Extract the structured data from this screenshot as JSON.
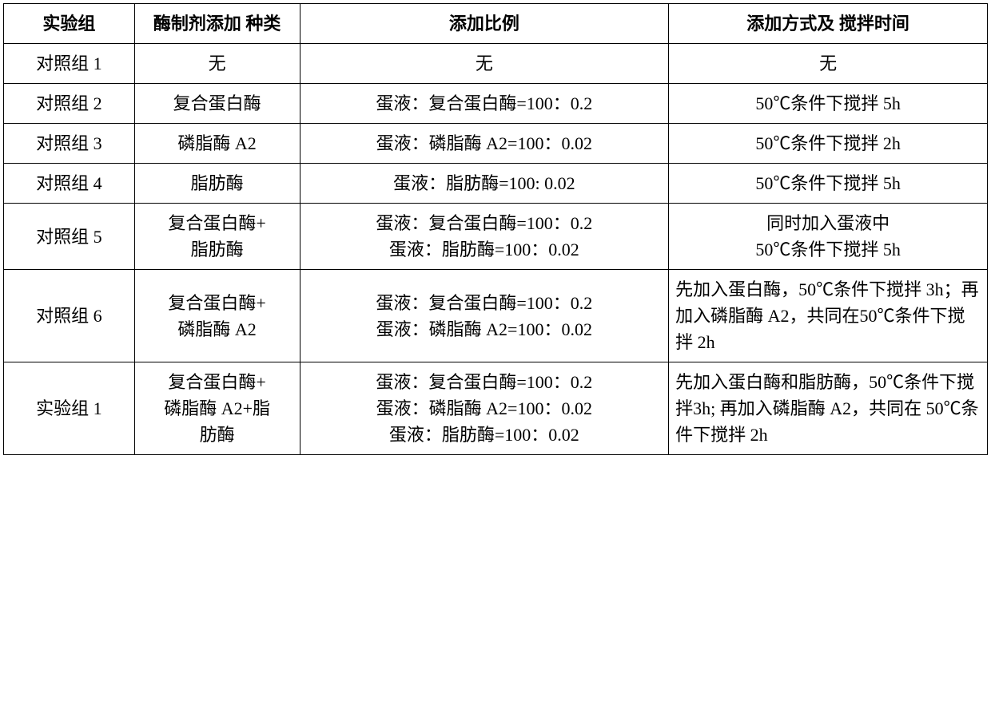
{
  "table": {
    "border_color": "#000000",
    "background_color": "#ffffff",
    "text_color": "#000000",
    "font_size_pt": 16,
    "columns": [
      {
        "label": "实验组",
        "width_pct": 13.3,
        "align": "center"
      },
      {
        "label_line1": "酶制剂添加",
        "label_line2": "种类",
        "width_pct": 16.8,
        "align": "center"
      },
      {
        "label": "添加比例",
        "width_pct": 37.5,
        "align": "center"
      },
      {
        "label_line1": "添加方式及",
        "label_line2": "搅拌时间",
        "width_pct": 32.4,
        "align": "center"
      }
    ],
    "rows": [
      {
        "group": "对照组 1",
        "enzyme": "无",
        "ratio": "无",
        "method": "无",
        "method_align": "center"
      },
      {
        "group": "对照组 2",
        "enzyme": "复合蛋白酶",
        "ratio": "蛋液：复合蛋白酶=100：0.2",
        "method": "50℃条件下搅拌 5h",
        "method_align": "center"
      },
      {
        "group": "对照组 3",
        "enzyme": "磷脂酶 A2",
        "ratio": "蛋液：磷脂酶 A2=100：0.02",
        "method": "50℃条件下搅拌 2h",
        "method_align": "center"
      },
      {
        "group": "对照组 4",
        "enzyme": "脂肪酶",
        "ratio": "蛋液：脂肪酶=100: 0.02",
        "method": "50℃条件下搅拌 5h",
        "method_align": "center"
      },
      {
        "group": "对照组 5",
        "enzyme_line1": "复合蛋白酶+",
        "enzyme_line2": "脂肪酶",
        "ratio_line1": "蛋液：复合蛋白酶=100：0.2",
        "ratio_line2": "蛋液：脂肪酶=100：0.02",
        "method_line1": "同时加入蛋液中",
        "method_line2": "50℃条件下搅拌 5h",
        "method_align": "center"
      },
      {
        "group": "对照组 6",
        "enzyme_line1": "复合蛋白酶+",
        "enzyme_line2": "磷脂酶 A2",
        "ratio_line1": "蛋液：复合蛋白酶=100：0.2",
        "ratio_line2": "蛋液：磷脂酶 A2=100：0.02",
        "method_text": "先加入蛋白酶，50℃条件下搅拌 3h；再加入磷脂酶 A2，共同在50℃条件下搅拌 2h",
        "method_align": "left"
      },
      {
        "group": "实验组 1",
        "enzyme_line1": "复合蛋白酶+",
        "enzyme_line2": "磷脂酶 A2+脂",
        "enzyme_line3": "肪酶",
        "ratio_line1": "蛋液：复合蛋白酶=100：0.2",
        "ratio_line2": "蛋液：磷脂酶 A2=100：0.02",
        "ratio_line3": "蛋液：脂肪酶=100：0.02",
        "method_text": "先加入蛋白酶和脂肪酶，50℃条件下搅拌3h; 再加入磷脂酶 A2，共同在 50℃条件下搅拌 2h",
        "method_align": "left"
      }
    ]
  }
}
